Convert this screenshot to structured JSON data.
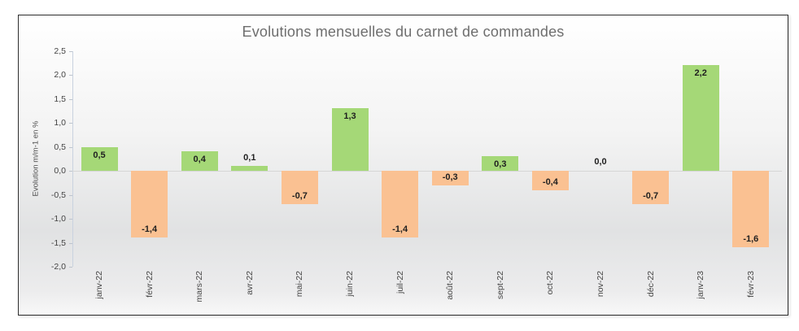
{
  "chart_data": {
    "type": "bar",
    "title": "Evolutions mensuelles du carnet de commandes",
    "xlabel": "",
    "ylabel": "Evolution m/m-1 en %",
    "categories": [
      "janv-22",
      "févr-22",
      "mars-22",
      "avr-22",
      "mai-22",
      "juin-22",
      "juil-22",
      "août-22",
      "sept-22",
      "oct-22",
      "nov-22",
      "déc-22",
      "janv-23",
      "févr-23"
    ],
    "values": [
      0.5,
      -1.4,
      0.4,
      0.1,
      -0.7,
      1.3,
      -1.4,
      -0.3,
      0.3,
      -0.4,
      0.0,
      -0.7,
      2.2,
      -1.6
    ],
    "value_labels": [
      "0,5",
      "-1,4",
      "0,4",
      "0,1",
      "-0,7",
      "1,3",
      "-1,4",
      "-0,3",
      "0,3",
      "-0,4",
      "0,0",
      "-0,7",
      "2,2",
      "-1,6"
    ],
    "y_tick_labels": [
      "2,5",
      "2,0",
      "1,5",
      "1,0",
      "0,5",
      "0,0",
      "-0,5",
      "-1,0",
      "-1,5",
      "-2,0"
    ],
    "ylim": [
      -2.0,
      2.5
    ],
    "y_step": 0.5,
    "grid": false,
    "legend_position": "none",
    "colors": {
      "positive_bar": "#a5d877",
      "negative_bar": "#fac192"
    }
  }
}
